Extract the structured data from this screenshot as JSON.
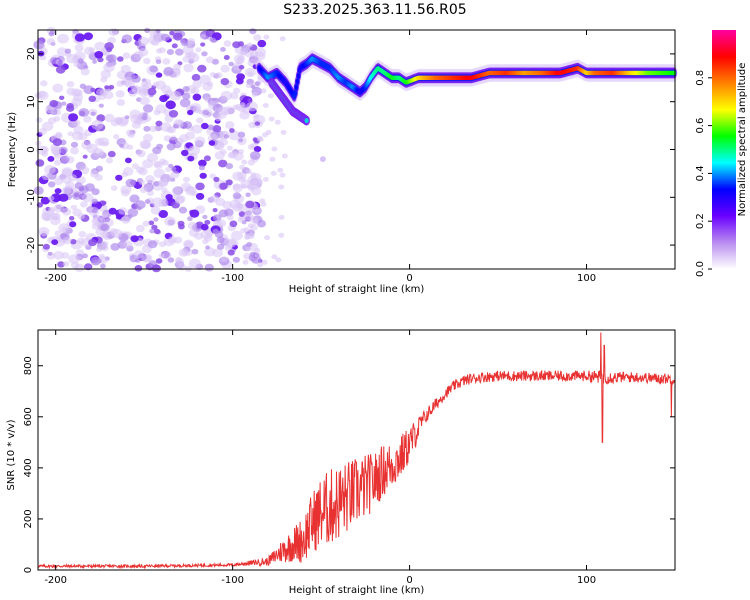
{
  "figure_title": "S233.2025.363.11.56.R05",
  "chart_data": [
    {
      "type": "heatmap",
      "title": "S233.2025.363.11.56.R05",
      "xlabel": "Height of straight line (km)",
      "ylabel": "Frequency (Hz)",
      "xlim": [
        -210,
        150
      ],
      "ylim": [
        -25,
        25
      ],
      "xticks": [
        -200,
        -100,
        0,
        100
      ],
      "xtick_labels": [
        "-200",
        "-100",
        "0",
        "100"
      ],
      "yticks": [
        20,
        10,
        0,
        -10,
        -20
      ],
      "ytick_labels": [
        "20",
        "10",
        "0",
        "-10",
        "-20"
      ],
      "noise_region_x": [
        -210,
        -83
      ],
      "ridge": {
        "x": [
          -85,
          -80,
          -75,
          -70,
          -65,
          -62,
          -58,
          -55,
          -50,
          -45,
          -40,
          -36,
          -32,
          -28,
          -25,
          -22,
          -18,
          -14,
          -10,
          -6,
          -2,
          5,
          15,
          25,
          35,
          45,
          55,
          65,
          75,
          85,
          95,
          100,
          105,
          115,
          125,
          135,
          150
        ],
        "y": [
          17,
          15,
          16,
          14,
          11,
          17,
          18,
          19,
          18,
          17,
          15,
          14,
          13,
          12,
          13,
          15,
          17,
          16,
          15,
          15,
          14,
          15,
          15,
          15,
          15,
          16,
          16,
          16,
          16,
          16,
          17,
          16,
          16,
          16,
          16,
          16,
          16
        ],
        "amplitude": [
          0.3,
          0.4,
          0.35,
          0.3,
          0.35,
          0.3,
          0.35,
          0.4,
          0.35,
          0.35,
          0.4,
          0.35,
          0.4,
          0.3,
          0.35,
          0.45,
          0.5,
          0.5,
          0.55,
          0.5,
          0.55,
          0.7,
          0.8,
          0.85,
          0.9,
          0.8,
          0.85,
          0.75,
          0.8,
          0.9,
          0.85,
          0.7,
          0.8,
          0.85,
          0.7,
          0.6,
          0.55
        ]
      },
      "branch": {
        "x": [
          -78,
          -74,
          -70,
          -66,
          -62,
          -58
        ],
        "y": [
          14,
          12,
          10,
          8,
          7,
          6
        ]
      },
      "colorbar": {
        "label": "Normalized spectral amplitude",
        "range": [
          0,
          1
        ],
        "ticks": [
          0.0,
          0.2,
          0.4,
          0.6,
          0.8
        ],
        "tick_labels": [
          "0.0",
          "0.2",
          "0.4",
          "0.6",
          "0.8"
        ],
        "colors": [
          "#ffffff",
          "#b98cf0",
          "#6a00ff",
          "#0000ff",
          "#00ffff",
          "#00ff00",
          "#ffff00",
          "#ff8000",
          "#ff0000",
          "#ff00a0"
        ]
      }
    },
    {
      "type": "line",
      "xlabel": "Height of straight line (km)",
      "ylabel": "SNR (10 * v/v)",
      "xlim": [
        -210,
        150
      ],
      "ylim": [
        0,
        940
      ],
      "xticks": [
        -200,
        -100,
        0,
        100
      ],
      "xtick_labels": [
        "-200",
        "-100",
        "0",
        "100"
      ],
      "yticks": [
        0,
        200,
        400,
        600,
        800
      ],
      "ytick_labels": [
        "0",
        "200",
        "400",
        "600",
        "800"
      ],
      "series": [
        {
          "name": "SNR",
          "color": "#e83232",
          "x": [
            -210,
            -150,
            -100,
            -80,
            -72,
            -65,
            -60,
            -55,
            -50,
            -45,
            -40,
            -35,
            -30,
            -25,
            -20,
            -15,
            -10,
            -5,
            0,
            5,
            10,
            15,
            20,
            25,
            30,
            35,
            40,
            50,
            60,
            70,
            80,
            90,
            100,
            110,
            120,
            130,
            140,
            150
          ],
          "values": [
            15,
            15,
            20,
            35,
            80,
            110,
            130,
            200,
            240,
            260,
            280,
            300,
            320,
            340,
            360,
            400,
            420,
            450,
            500,
            560,
            610,
            650,
            690,
            720,
            740,
            750,
            755,
            760,
            760,
            760,
            760,
            760,
            760,
            755,
            755,
            755,
            750,
            750
          ],
          "noise_amplitude": [
            8,
            8,
            8,
            20,
            60,
            90,
            120,
            150,
            180,
            190,
            190,
            180,
            170,
            160,
            140,
            130,
            120,
            110,
            90,
            60,
            40,
            35,
            30,
            30,
            30,
            30,
            30,
            30,
            30,
            30,
            30,
            30,
            30,
            40,
            30,
            30,
            30,
            30
          ],
          "peaks": [
            [
              108,
              930
            ],
            [
              110,
              880
            ],
            [
              109,
              500
            ],
            [
              148,
              600
            ]
          ]
        }
      ]
    }
  ]
}
